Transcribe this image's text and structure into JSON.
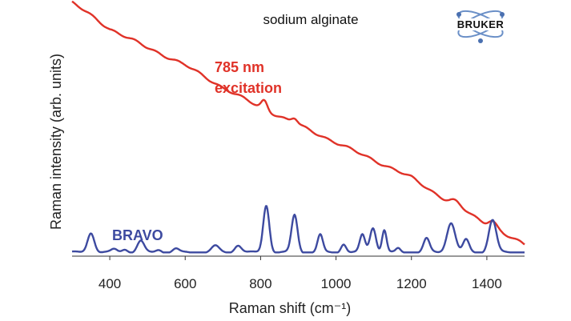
{
  "chart_data": {
    "type": "line",
    "title": "sodium alginate",
    "xlabel": "Raman shift (cm⁻¹)",
    "ylabel": "Raman intensity (arb. units)",
    "xlim": [
      300,
      1500
    ],
    "ylim": [
      0,
      1
    ],
    "xticks": [
      400,
      600,
      800,
      1000,
      1200,
      1400
    ],
    "grid": false,
    "annotations": [
      {
        "text": "785 nm",
        "color": "#e03228"
      },
      {
        "text": "excitation",
        "color": "#e03228"
      },
      {
        "text": "BRAVO",
        "color": "#3d4aa0"
      }
    ],
    "series": [
      {
        "name": "785 nm excitation",
        "color": "#e03228",
        "baseline": [
          [
            300,
            1.0
          ],
          [
            340,
            0.96
          ],
          [
            400,
            0.895
          ],
          [
            500,
            0.82
          ],
          [
            600,
            0.75
          ],
          [
            700,
            0.66
          ],
          [
            800,
            0.58
          ],
          [
            900,
            0.51
          ],
          [
            1000,
            0.44
          ],
          [
            1100,
            0.37
          ],
          [
            1200,
            0.3
          ],
          [
            1300,
            0.2
          ],
          [
            1350,
            0.16
          ],
          [
            1400,
            0.11
          ],
          [
            1450,
            0.07
          ],
          [
            1500,
            0.03
          ]
        ],
        "peaks": [
          {
            "x": 810,
            "h": 0.035,
            "w": 8
          },
          {
            "x": 890,
            "h": 0.02,
            "w": 8
          },
          {
            "x": 1315,
            "h": 0.018,
            "w": 14
          },
          {
            "x": 1415,
            "h": 0.03,
            "w": 12
          }
        ]
      },
      {
        "name": "BRAVO",
        "color": "#3d4aa0",
        "baseline": [
          [
            300,
            0.0
          ],
          [
            1500,
            0.0
          ]
        ],
        "peaks": [
          {
            "x": 350,
            "h": 0.08,
            "w": 9
          },
          {
            "x": 412,
            "h": 0.012,
            "w": 8
          },
          {
            "x": 440,
            "h": 0.014,
            "w": 8
          },
          {
            "x": 482,
            "h": 0.045,
            "w": 9
          },
          {
            "x": 530,
            "h": 0.012,
            "w": 8
          },
          {
            "x": 575,
            "h": 0.014,
            "w": 8
          },
          {
            "x": 680,
            "h": 0.025,
            "w": 10
          },
          {
            "x": 740,
            "h": 0.03,
            "w": 9
          },
          {
            "x": 815,
            "h": 0.19,
            "w": 8
          },
          {
            "x": 890,
            "h": 0.15,
            "w": 8
          },
          {
            "x": 958,
            "h": 0.07,
            "w": 7
          },
          {
            "x": 1020,
            "h": 0.035,
            "w": 7
          },
          {
            "x": 1070,
            "h": 0.07,
            "w": 7
          },
          {
            "x": 1098,
            "h": 0.1,
            "w": 8
          },
          {
            "x": 1128,
            "h": 0.09,
            "w": 6
          },
          {
            "x": 1165,
            "h": 0.015,
            "w": 6
          },
          {
            "x": 1240,
            "h": 0.055,
            "w": 8
          },
          {
            "x": 1305,
            "h": 0.12,
            "w": 11
          },
          {
            "x": 1345,
            "h": 0.05,
            "w": 8
          },
          {
            "x": 1415,
            "h": 0.13,
            "w": 10
          }
        ]
      }
    ]
  },
  "logo": {
    "text": "BRUKER"
  }
}
